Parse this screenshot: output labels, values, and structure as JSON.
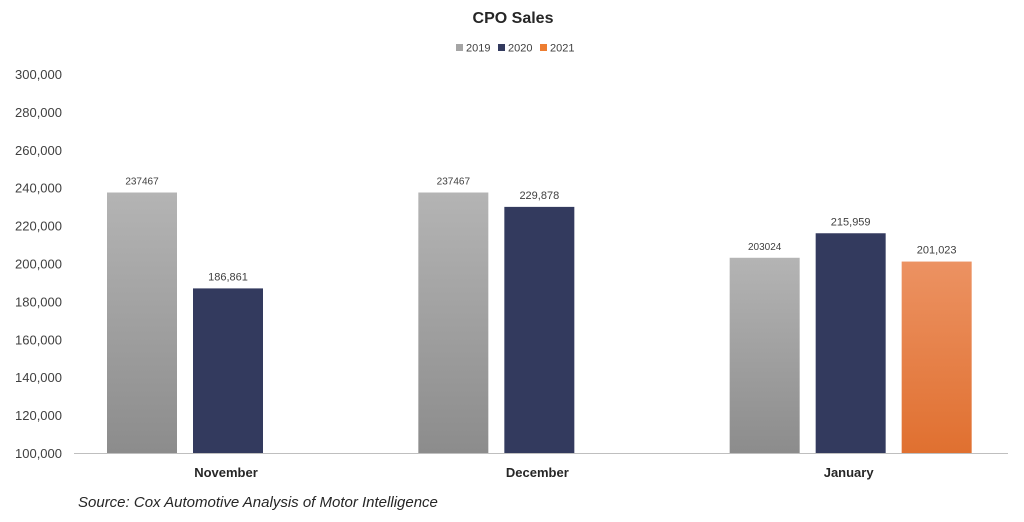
{
  "chart_data": {
    "type": "bar",
    "title": "CPO Sales",
    "xlabel": "",
    "ylabel": "",
    "ylim": [
      100000,
      300000
    ],
    "ytick_step": 20000,
    "yticks": [
      "100,000",
      "120,000",
      "140,000",
      "160,000",
      "180,000",
      "200,000",
      "220,000",
      "240,000",
      "260,000",
      "280,000",
      "300,000"
    ],
    "categories": [
      "November",
      "December",
      "January"
    ],
    "series": [
      {
        "name": "2019",
        "color": "#a5a5a5",
        "values": [
          237467,
          237467,
          203024
        ],
        "labels": [
          "237467",
          "237467",
          "203024"
        ]
      },
      {
        "name": "2020",
        "color": "#333a5e",
        "values": [
          186861,
          229878,
          215959
        ],
        "labels": [
          "186,861",
          "229,878",
          "215,959"
        ]
      },
      {
        "name": "2021",
        "color": "#ed7d31",
        "values": [
          null,
          null,
          201023
        ],
        "labels": [
          null,
          null,
          "201,023"
        ]
      }
    ],
    "legend_position": "top-center",
    "grid": false
  },
  "source_note": "Source: Cox Automotive Analysis of Motor Intelligence"
}
